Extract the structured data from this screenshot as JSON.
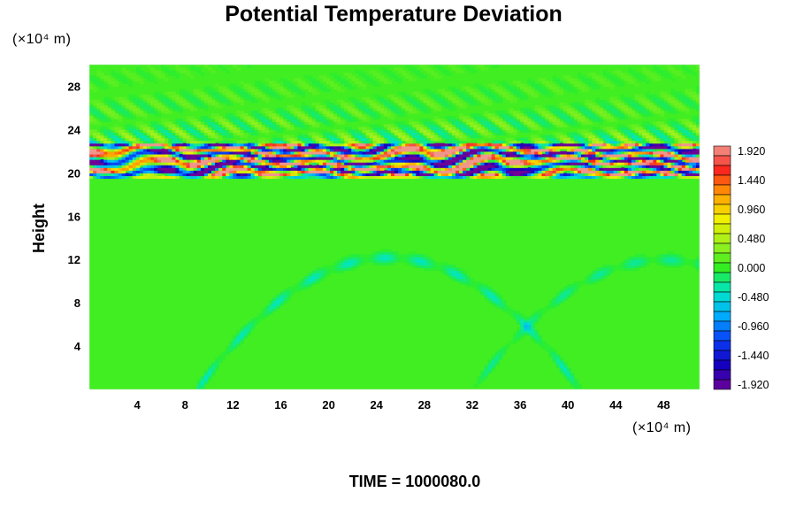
{
  "chart_data": {
    "type": "heatmap",
    "title": "Potential Temperature Deviation",
    "ylabel": "Height",
    "y_unit": "(×10⁴ m)",
    "x_unit": "(×10⁴ m)",
    "footer": "TIME = 1000080.0",
    "x_ticks": [
      "4",
      "8",
      "12",
      "16",
      "20",
      "24",
      "28",
      "32",
      "36",
      "40",
      "44",
      "48"
    ],
    "y_ticks": [
      "4",
      "8",
      "12",
      "16",
      "20",
      "24",
      "28"
    ],
    "xlim": [
      0,
      51
    ],
    "ylim": [
      0,
      30
    ],
    "colorbar": {
      "labels": [
        "1.920",
        "1.440",
        "0.960",
        "0.480",
        "0.000",
        "-0.480",
        "-0.960",
        "-1.440",
        "-1.920"
      ],
      "range": [
        -2.0,
        2.0
      ],
      "levels": 25
    },
    "field": {
      "background_value": 0.05,
      "band": {
        "y_bottom": 19.8,
        "y_top": 22.6,
        "amplitude": 1.92
      },
      "wave_zone": {
        "y_bottom": 22.6,
        "y_top": 30.0,
        "amplitude": 0.5
      },
      "arches": [
        {
          "x_center": 25.0,
          "y_top": 12.2,
          "amplitude": -0.45
        },
        {
          "x_center": 48.0,
          "y_top": 12.0,
          "amplitude": -0.35
        }
      ]
    },
    "colors": {
      "background": "#ffffff",
      "text": "#000000",
      "field_zero": "#33ee22"
    }
  }
}
